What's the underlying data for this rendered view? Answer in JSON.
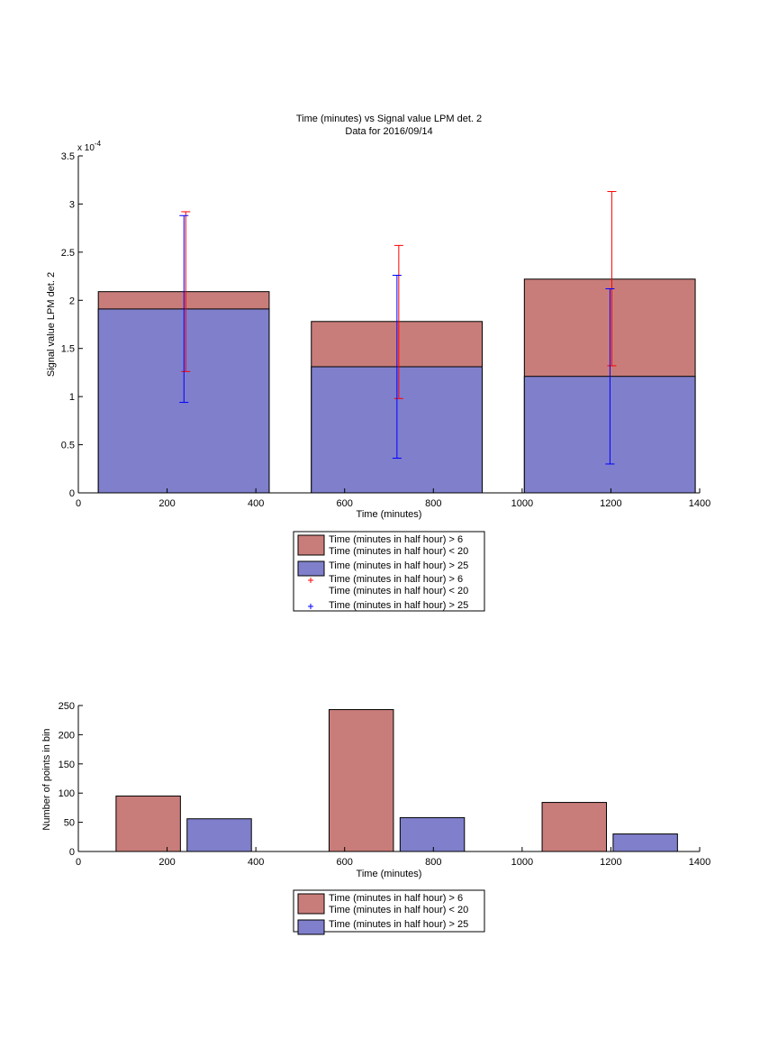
{
  "chart_data": [
    {
      "type": "bar",
      "stacked": true,
      "title": "Time (minutes) vs Signal value LPM det. 2",
      "subtitle": "Data for 2016/09/14",
      "xlabel": "Time (minutes)",
      "ylabel": "Signal value LPM det. 2",
      "y_exponent_label": "x 10",
      "y_exponent_power": "-4",
      "xlim": [
        0,
        1400
      ],
      "ylim": [
        0,
        3.5
      ],
      "y_scale_note": "values in units of 1e-4",
      "x_ticks": [
        "0",
        "200",
        "400",
        "600",
        "800",
        "1000",
        "1200",
        "1400"
      ],
      "y_ticks": [
        "0",
        "0.5",
        "1",
        "1.5",
        "2",
        "2.5",
        "3",
        "3.5"
      ],
      "x_tick_values": [
        0,
        200,
        400,
        600,
        800,
        1000,
        1200,
        1400
      ],
      "y_tick_values": [
        0,
        0.5,
        1,
        1.5,
        2,
        2.5,
        3,
        3.5
      ],
      "grid": false,
      "legend_position": "below",
      "bars": [
        {
          "x_start": 45,
          "x_end": 430,
          "blue_value": 1.91,
          "red_total": 2.09
        },
        {
          "x_start": 525,
          "x_end": 910,
          "blue_value": 1.31,
          "red_total": 1.78
        },
        {
          "x_start": 1005,
          "x_end": 1390,
          "blue_value": 1.21,
          "red_total": 2.22
        }
      ],
      "series": [
        {
          "name": "Time (minutes in half hour) > 6\nTime (minutes in half hour) < 20",
          "color": "#c97d7a",
          "errorbars": [
            {
              "x": 240,
              "low": 1.26,
              "high": 2.92
            },
            {
              "x": 720,
              "low": 0.98,
              "high": 2.57
            },
            {
              "x": 1200,
              "low": 1.32,
              "high": 3.13
            }
          ]
        },
        {
          "name": "Time (minutes in half hour) > 25",
          "color": "#7f7fcc",
          "errorbars": [
            {
              "x": 240,
              "low": 0.94,
              "high": 2.88
            },
            {
              "x": 720,
              "low": 0.36,
              "high": 2.26
            },
            {
              "x": 1200,
              "low": 0.3,
              "high": 2.12
            }
          ]
        }
      ],
      "errorbar_colors": {
        "red": "#ff0000",
        "blue": "#0000ff"
      },
      "legend": [
        {
          "kind": "patch",
          "color": "#c97d7a",
          "lines": [
            "Time (minutes in half hour) > 6",
            "Time (minutes in half hour) < 20"
          ]
        },
        {
          "kind": "patch",
          "color": "#7f7fcc",
          "lines": [
            "Time (minutes in half hour) > 25"
          ]
        },
        {
          "kind": "marker",
          "color": "#ff0000",
          "lines": [
            "Time (minutes in half hour) > 6",
            "Time (minutes in half hour) < 20"
          ]
        },
        {
          "kind": "marker",
          "color": "#0000ff",
          "lines": [
            "Time (minutes in half hour) > 25"
          ]
        }
      ]
    },
    {
      "type": "bar",
      "xlabel": "Time (minutes)",
      "ylabel": "Number of points in bin",
      "xlim": [
        0,
        1400
      ],
      "ylim": [
        0,
        250
      ],
      "x_ticks": [
        "0",
        "200",
        "400",
        "600",
        "800",
        "1000",
        "1200",
        "1400"
      ],
      "y_ticks": [
        "0",
        "50",
        "100",
        "150",
        "200",
        "250"
      ],
      "x_tick_values": [
        0,
        200,
        400,
        600,
        800,
        1000,
        1200,
        1400
      ],
      "y_tick_values": [
        0,
        50,
        100,
        150,
        200,
        250
      ],
      "grid": false,
      "legend_position": "below",
      "bars": [
        {
          "x_start": 85,
          "x_end": 230,
          "value": 95,
          "series": 0
        },
        {
          "x_start": 245,
          "x_end": 390,
          "value": 56,
          "series": 1
        },
        {
          "x_start": 565,
          "x_end": 710,
          "value": 243,
          "series": 0
        },
        {
          "x_start": 725,
          "x_end": 870,
          "value": 58,
          "series": 1
        },
        {
          "x_start": 1045,
          "x_end": 1190,
          "value": 84,
          "series": 0
        },
        {
          "x_start": 1205,
          "x_end": 1350,
          "value": 30,
          "series": 1
        }
      ],
      "series": [
        {
          "name": "Time (minutes in half hour) > 6\nTime (minutes in half hour) < 20",
          "color": "#c97d7a"
        },
        {
          "name": "Time (minutes in half hour) > 25",
          "color": "#7f7fcc"
        }
      ],
      "legend": [
        {
          "kind": "patch",
          "color": "#c97d7a",
          "lines": [
            "Time (minutes in half hour) > 6",
            "Time (minutes in half hour) < 20"
          ]
        },
        {
          "kind": "patch",
          "color": "#7f7fcc",
          "lines": [
            "Time (minutes in half hour) > 25"
          ]
        }
      ]
    }
  ]
}
